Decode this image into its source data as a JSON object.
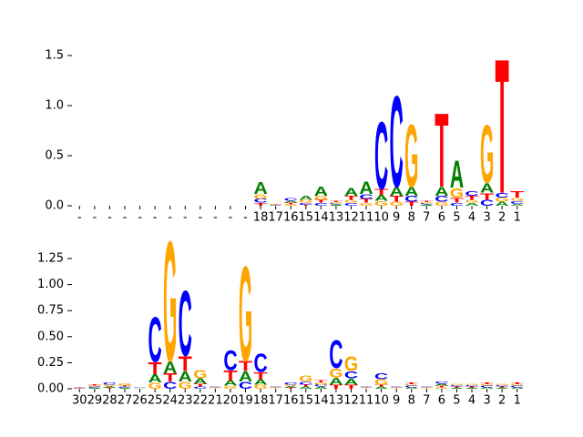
{
  "chart_data": [
    {
      "type": "logo",
      "categories": [
        "-",
        "-",
        "-",
        "-",
        "-",
        "-",
        "-",
        "-",
        "-",
        "-",
        "-",
        "-",
        "18",
        "17",
        "16",
        "15",
        "14",
        "13",
        "12",
        "11",
        "10",
        "9",
        "8",
        "7",
        "6",
        "5",
        "4",
        "3",
        "2",
        "1"
      ],
      "ylim": [
        0,
        1.6
      ],
      "yticks": [
        {
          "value": 0,
          "label": "0.0"
        },
        {
          "value": 0.5,
          "label": "0.5"
        },
        {
          "value": 1.0,
          "label": "1.0"
        },
        {
          "value": 1.5,
          "label": "1.5"
        }
      ],
      "series": [
        {
          "name": "A",
          "color": "#008000",
          "values": [
            0,
            0,
            0,
            0,
            0,
            0,
            0,
            0,
            0,
            0,
            0,
            0,
            0.12,
            0.005,
            0.02,
            0.04,
            0.1,
            0.012,
            0.08,
            0.13,
            0.06,
            0.09,
            0.09,
            0.012,
            0.09,
            0.28,
            0.03,
            0.1,
            0.04,
            0.02
          ]
        },
        {
          "name": "C",
          "color": "#0000ff",
          "values": [
            0,
            0,
            0,
            0,
            0,
            0,
            0,
            0,
            0,
            0,
            0,
            0,
            0.04,
            0.005,
            0.03,
            0.02,
            0.03,
            0.012,
            0.03,
            0.05,
            0.7,
            0.95,
            0.06,
            0.012,
            0.06,
            0.03,
            0.05,
            0.06,
            0.05,
            0.03
          ]
        },
        {
          "name": "G",
          "color": "#ffa500",
          "values": [
            0,
            0,
            0,
            0,
            0,
            0,
            0,
            0,
            0,
            0,
            0,
            0,
            0.05,
            0.005,
            0.015,
            0.03,
            0.04,
            0.012,
            0.03,
            0.03,
            0.05,
            0.04,
            0.65,
            0.012,
            0.04,
            0.1,
            0.03,
            0.6,
            0.04,
            0.03
          ]
        },
        {
          "name": "T",
          "color": "#ff0000",
          "values": [
            0,
            0,
            0,
            0,
            0,
            0,
            0,
            0,
            0,
            0,
            0,
            0,
            0.03,
            0.005,
            0.015,
            0.01,
            0.03,
            0.012,
            0.04,
            0.04,
            0.06,
            0.06,
            0.04,
            0.012,
            0.77,
            0.05,
            0.04,
            0.07,
            1.4,
            0.07
          ]
        }
      ]
    },
    {
      "type": "logo",
      "categories": [
        "30",
        "29",
        "28",
        "27",
        "26",
        "25",
        "24",
        "23",
        "22",
        "21",
        "20",
        "19",
        "18",
        "17",
        "16",
        "15",
        "14",
        "13",
        "12",
        "11",
        "10",
        "9",
        "8",
        "7",
        "6",
        "5",
        "4",
        "3",
        "2",
        "1"
      ],
      "ylim": [
        0,
        1.5
      ],
      "yticks": [
        {
          "value": 0,
          "label": "0.00"
        },
        {
          "value": 0.25,
          "label": "0.25"
        },
        {
          "value": 0.5,
          "label": "0.50"
        },
        {
          "value": 0.75,
          "label": "0.75"
        },
        {
          "value": 1.0,
          "label": "1.00"
        },
        {
          "value": 1.25,
          "label": "1.25"
        }
      ],
      "series": [
        {
          "name": "A",
          "color": "#008000",
          "values": [
            0.005,
            0.01,
            0.015,
            0.01,
            0.003,
            0.08,
            0.12,
            0.1,
            0.05,
            0.008,
            0.05,
            0.1,
            0.05,
            0.008,
            0.015,
            0.02,
            0.02,
            0.07,
            0.06,
            0.008,
            0.02,
            0.008,
            0.015,
            0.008,
            0.02,
            0.012,
            0.012,
            0.015,
            0.012,
            0.015
          ]
        },
        {
          "name": "C",
          "color": "#0000ff",
          "values": [
            0.005,
            0.01,
            0.02,
            0.01,
            0.003,
            0.45,
            0.07,
            0.65,
            0.02,
            0.008,
            0.2,
            0.07,
            0.18,
            0.008,
            0.02,
            0.03,
            0.02,
            0.28,
            0.07,
            0.008,
            0.06,
            0.008,
            0.015,
            0.008,
            0.02,
            0.013,
            0.013,
            0.015,
            0.013,
            0.015
          ]
        },
        {
          "name": "G",
          "color": "#ffa500",
          "values": [
            0.005,
            0.01,
            0.015,
            0.02,
            0.002,
            0.06,
            1.2,
            0.07,
            0.08,
            0.007,
            0.03,
            0.95,
            0.04,
            0.007,
            0.015,
            0.06,
            0.02,
            0.09,
            0.15,
            0.007,
            0.05,
            0.007,
            0.015,
            0.007,
            0.015,
            0.013,
            0.013,
            0.015,
            0.013,
            0.015
          ]
        },
        {
          "name": "T",
          "color": "#ff0000",
          "values": [
            0.005,
            0.01,
            0.01,
            0.01,
            0.002,
            0.12,
            0.08,
            0.15,
            0.03,
            0.007,
            0.1,
            0.1,
            0.07,
            0.007,
            0.01,
            0.02,
            0.02,
            0.04,
            0.04,
            0.007,
            0.02,
            0.007,
            0.015,
            0.007,
            0.015,
            0.012,
            0.012,
            0.015,
            0.012,
            0.015
          ]
        }
      ]
    }
  ]
}
